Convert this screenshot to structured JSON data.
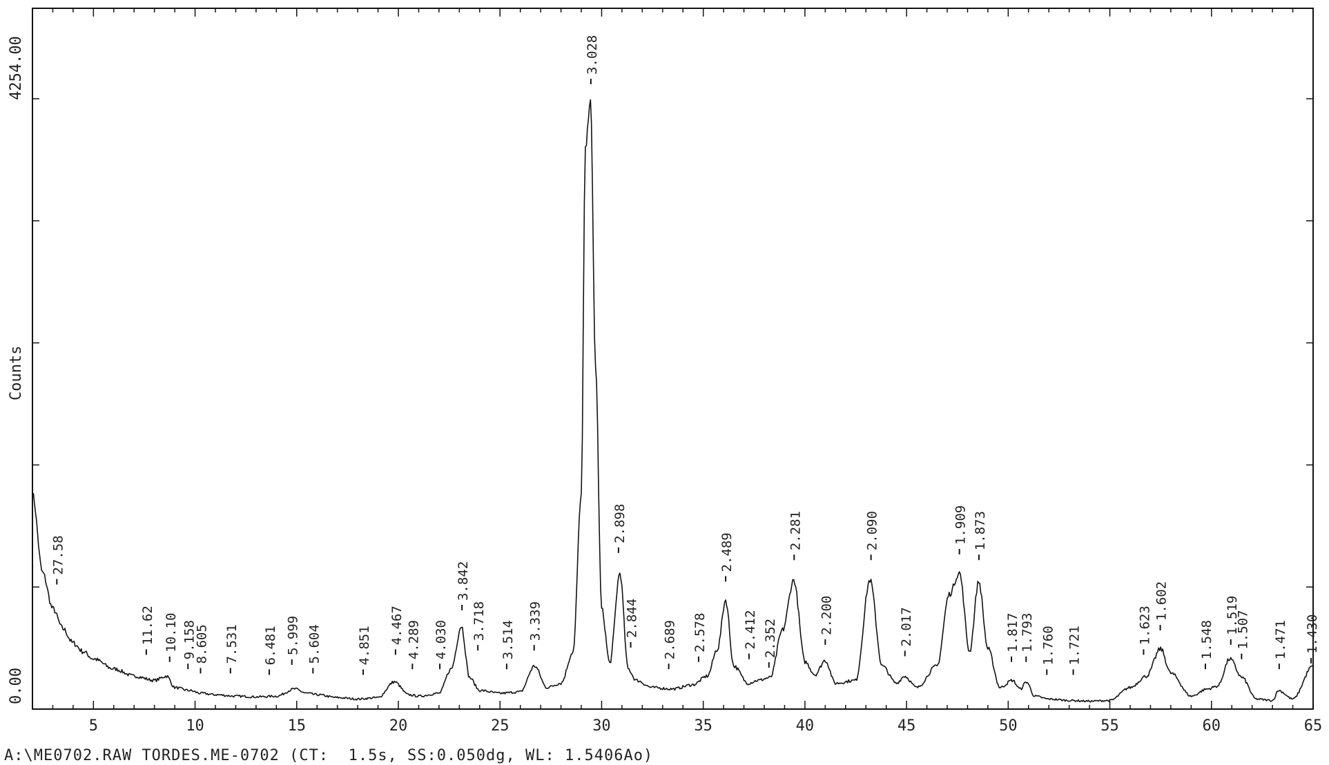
{
  "chart_data": {
    "type": "line",
    "title": "",
    "xlabel": "",
    "ylabel": "Counts",
    "xlim": [
      2,
      65
    ],
    "ylim": [
      0,
      4254
    ],
    "y_tick_labels": [
      "0.00",
      "4254.00"
    ],
    "x_ticks": [
      5,
      10,
      15,
      20,
      25,
      30,
      35,
      40,
      45,
      50,
      55,
      60,
      65
    ],
    "grid": false,
    "legend": "none",
    "series": [
      {
        "x": [
          2.0,
          2.5,
          3.0,
          3.5,
          4.0,
          4.5,
          5.0,
          6.0,
          7.0,
          8.0,
          8.6,
          9.0,
          9.7,
          10.3,
          11.0,
          12.0,
          13.0,
          14.0,
          14.9,
          15.5,
          16.0,
          17.0,
          18.0,
          19.0,
          19.8,
          20.5,
          21.0,
          22.0,
          22.6,
          23.1,
          23.5,
          24.0,
          25.0,
          26.0,
          26.7,
          27.3,
          28.0,
          28.6,
          29.0,
          29.2,
          29.45,
          29.7,
          30.0,
          30.4,
          30.9,
          31.3,
          31.7,
          32.5,
          33.5,
          34.5,
          35.2,
          35.7,
          36.1,
          36.5,
          37.2,
          37.7,
          38.3,
          38.9,
          39.45,
          40.0,
          40.5,
          41.0,
          41.5,
          42.5,
          43.2,
          43.8,
          44.5,
          44.9,
          45.5,
          46.5,
          47.1,
          47.6,
          48.1,
          48.55,
          49.0,
          49.6,
          50.2,
          50.6,
          50.9,
          51.3,
          52.0,
          53.0,
          54.0,
          55.0,
          56.0,
          56.8,
          57.5,
          58.0,
          59.0,
          59.8,
          60.3,
          60.9,
          61.5,
          62.2,
          63.0,
          63.3,
          64.0,
          65.0
        ],
        "y": [
          1500,
          950,
          700,
          560,
          460,
          400,
          350,
          280,
          230,
          200,
          230,
          150,
          130,
          110,
          100,
          90,
          85,
          90,
          140,
          110,
          100,
          80,
          70,
          80,
          190,
          100,
          90,
          110,
          280,
          580,
          220,
          130,
          110,
          120,
          300,
          150,
          180,
          400,
          1500,
          3900,
          4254,
          2400,
          700,
          320,
          950,
          280,
          200,
          150,
          140,
          170,
          230,
          420,
          760,
          300,
          180,
          200,
          220,
          550,
          900,
          330,
          240,
          340,
          180,
          200,
          900,
          300,
          180,
          230,
          150,
          300,
          800,
          950,
          400,
          890,
          420,
          150,
          200,
          140,
          190,
          90,
          70,
          60,
          55,
          60,
          150,
          230,
          420,
          250,
          90,
          140,
          160,
          350,
          220,
          70,
          60,
          130,
          70,
          300
        ]
      }
    ],
    "peak_labels": [
      {
        "x": 3.2,
        "y": 820,
        "label": "27.58"
      },
      {
        "x": 7.6,
        "y": 330,
        "label": "11.62"
      },
      {
        "x": 8.75,
        "y": 280,
        "label": "10.10"
      },
      {
        "x": 9.65,
        "y": 230,
        "label": "9.158"
      },
      {
        "x": 10.27,
        "y": 200,
        "label": "8.605"
      },
      {
        "x": 11.74,
        "y": 200,
        "label": "7.531"
      },
      {
        "x": 13.65,
        "y": 190,
        "label": "6.481"
      },
      {
        "x": 14.76,
        "y": 260,
        "label": "5.999"
      },
      {
        "x": 15.8,
        "y": 200,
        "label": "5.604"
      },
      {
        "x": 18.27,
        "y": 190,
        "label": "4.851"
      },
      {
        "x": 19.86,
        "y": 330,
        "label": "4.467"
      },
      {
        "x": 20.69,
        "y": 230,
        "label": "4.289"
      },
      {
        "x": 22.04,
        "y": 230,
        "label": "4.030"
      },
      {
        "x": 23.13,
        "y": 640,
        "label": "3.842"
      },
      {
        "x": 23.91,
        "y": 360,
        "label": "3.718"
      },
      {
        "x": 25.33,
        "y": 230,
        "label": "3.514"
      },
      {
        "x": 26.68,
        "y": 360,
        "label": "3.339"
      },
      {
        "x": 29.47,
        "y": 4350,
        "label": "3.028"
      },
      {
        "x": 30.83,
        "y": 1040,
        "label": "2.898"
      },
      {
        "x": 31.43,
        "y": 380,
        "label": "2.844"
      },
      {
        "x": 33.3,
        "y": 230,
        "label": "2.689"
      },
      {
        "x": 34.77,
        "y": 280,
        "label": "2.578"
      },
      {
        "x": 36.1,
        "y": 840,
        "label": "2.489"
      },
      {
        "x": 37.25,
        "y": 300,
        "label": "2.412"
      },
      {
        "x": 38.23,
        "y": 240,
        "label": "2.352"
      },
      {
        "x": 39.47,
        "y": 990,
        "label": "2.281"
      },
      {
        "x": 41.0,
        "y": 400,
        "label": "2.200"
      },
      {
        "x": 43.25,
        "y": 990,
        "label": "2.090"
      },
      {
        "x": 44.92,
        "y": 320,
        "label": "2.017"
      },
      {
        "x": 47.6,
        "y": 1030,
        "label": "1.909"
      },
      {
        "x": 48.56,
        "y": 990,
        "label": "1.873"
      },
      {
        "x": 50.16,
        "y": 280,
        "label": "1.817"
      },
      {
        "x": 50.88,
        "y": 280,
        "label": "1.793"
      },
      {
        "x": 51.9,
        "y": 190,
        "label": "1.760"
      },
      {
        "x": 53.2,
        "y": 190,
        "label": "1.721"
      },
      {
        "x": 56.66,
        "y": 330,
        "label": "1.623"
      },
      {
        "x": 57.48,
        "y": 500,
        "label": "1.602"
      },
      {
        "x": 59.7,
        "y": 230,
        "label": "1.548"
      },
      {
        "x": 60.95,
        "y": 400,
        "label": "1.519"
      },
      {
        "x": 61.48,
        "y": 300,
        "label": "1.507"
      },
      {
        "x": 63.33,
        "y": 230,
        "label": "1.471"
      },
      {
        "x": 64.9,
        "y": 270,
        "label": "1.430"
      }
    ]
  },
  "footer_text": "A:\\ME0702.RAW TORDES.ME-0702 (CT:  1.5s, SS:0.050dg, WL: 1.5406Ao)"
}
